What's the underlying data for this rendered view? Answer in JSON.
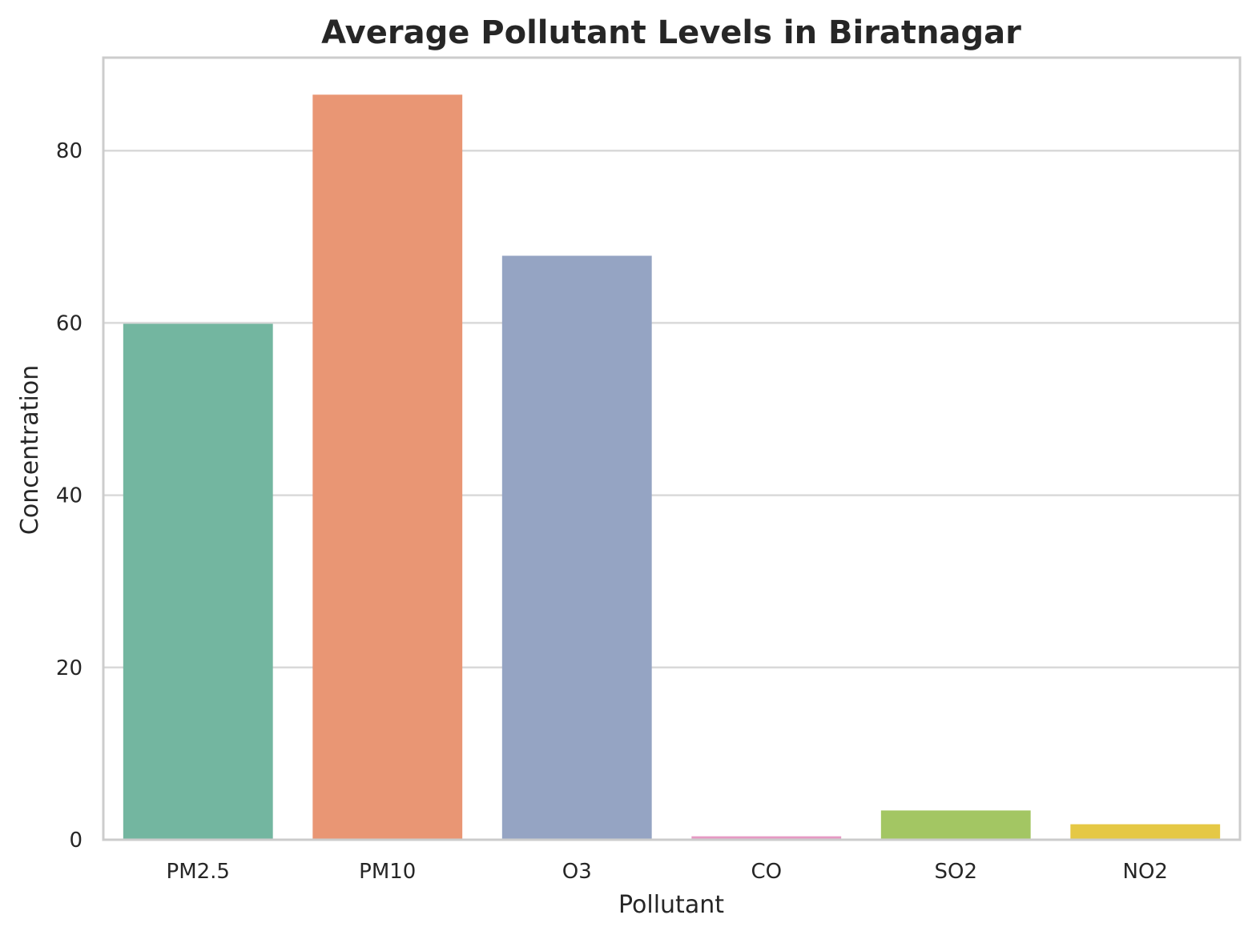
{
  "chart_data": {
    "type": "bar",
    "title": "Average Pollutant Levels in Biratnagar",
    "xlabel": "Pollutant",
    "ylabel": "Concentration",
    "categories": [
      "PM2.5",
      "PM10",
      "O3",
      "CO",
      "SO2",
      "NO2"
    ],
    "values": [
      59.9,
      86.5,
      67.8,
      0.4,
      3.4,
      1.8
    ],
    "colors": [
      "#73b6a0",
      "#e99674",
      "#95a4c3",
      "#e69ac4",
      "#a3c663",
      "#e5c845"
    ],
    "ylim": [
      0,
      90.8
    ],
    "yticks": [
      "0",
      "20",
      "40",
      "60",
      "80"
    ],
    "grid": "horizontal",
    "legend": "none"
  }
}
